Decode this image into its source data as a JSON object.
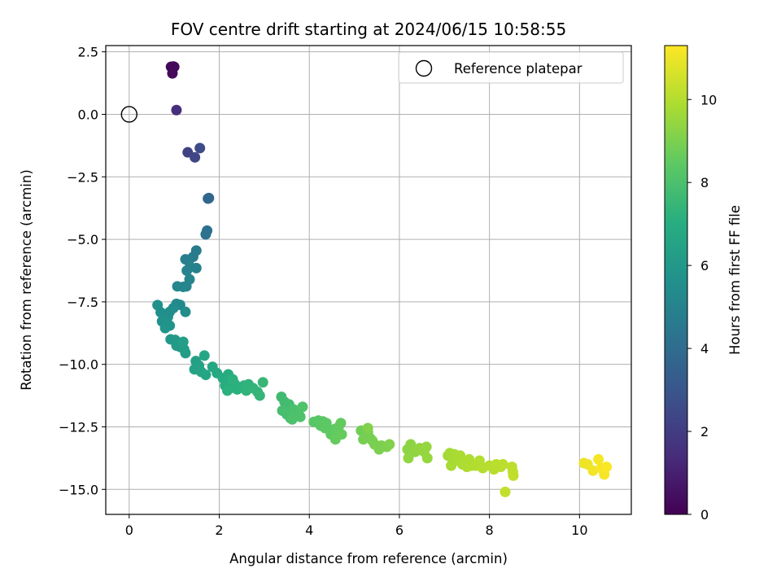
{
  "chart_data": {
    "type": "scatter",
    "title": "FOV centre drift starting at 2024/06/15 10:58:55",
    "xlabel": "Angular distance from reference (arcmin)",
    "ylabel": "Rotation from reference (arcmin)",
    "xlim": [
      -0.52,
      11.15
    ],
    "ylim": [
      -16.0,
      2.75
    ],
    "xticks": [
      "0",
      "2",
      "4",
      "6",
      "8",
      "10"
    ],
    "xtick_values": [
      0,
      2,
      4,
      6,
      8,
      10
    ],
    "yticks": [
      "2.5",
      "0.0",
      "−2.5",
      "−5.0",
      "−7.5",
      "−10.0",
      "−12.5",
      "−15.0"
    ],
    "ytick_values": [
      2.5,
      0.0,
      -2.5,
      -5.0,
      -7.5,
      -10.0,
      -12.5,
      -15.0
    ],
    "grid": true,
    "legend": {
      "placement": "top-right",
      "entries": [
        "Reference platepar"
      ]
    },
    "reference_point": {
      "x": 0.0,
      "y": 0.0
    },
    "colorbar": {
      "label": "Hours from first FF file",
      "range": [
        0,
        11.3
      ],
      "ticks": [
        "0",
        "2",
        "4",
        "6",
        "8",
        "10"
      ],
      "tick_values": [
        0,
        2,
        4,
        6,
        8,
        10
      ],
      "colormap": "viridis"
    },
    "points": [
      [
        0.98,
        1.91,
        0.15
      ],
      [
        0.93,
        1.9,
        0.2
      ],
      [
        1.0,
        1.9,
        0.25
      ],
      [
        0.96,
        1.64,
        0.3
      ],
      [
        1.05,
        0.17,
        1.5
      ],
      [
        1.3,
        -1.52,
        2.2
      ],
      [
        1.46,
        -1.72,
        2.4
      ],
      [
        1.57,
        -1.35,
        2.6
      ],
      [
        1.77,
        -3.35,
        3.7
      ],
      [
        1.75,
        -3.37,
        3.75
      ],
      [
        1.73,
        -4.65,
        4.1
      ],
      [
        1.7,
        -4.8,
        4.2
      ],
      [
        1.49,
        -5.45,
        4.6
      ],
      [
        1.42,
        -5.7,
        4.7
      ],
      [
        1.33,
        -5.82,
        4.8
      ],
      [
        1.25,
        -5.8,
        4.85
      ],
      [
        1.49,
        -6.15,
        4.9
      ],
      [
        1.35,
        -6.1,
        4.95
      ],
      [
        1.28,
        -6.25,
        5.0
      ],
      [
        1.34,
        -6.6,
        5.05
      ],
      [
        1.27,
        -6.88,
        5.1
      ],
      [
        1.2,
        -6.9,
        5.15
      ],
      [
        1.07,
        -6.88,
        5.2
      ],
      [
        1.05,
        -7.58,
        5.3
      ],
      [
        1.13,
        -7.62,
        5.35
      ],
      [
        0.98,
        -7.75,
        5.4
      ],
      [
        1.25,
        -7.9,
        5.45
      ],
      [
        0.9,
        -7.9,
        5.5
      ],
      [
        0.86,
        -8.1,
        5.55
      ],
      [
        0.7,
        -7.92,
        5.6
      ],
      [
        0.63,
        -7.63,
        5.65
      ],
      [
        0.73,
        -8.28,
        5.7
      ],
      [
        0.84,
        -8.32,
        5.75
      ],
      [
        0.9,
        -8.45,
        5.8
      ],
      [
        0.8,
        -8.55,
        5.85
      ],
      [
        0.92,
        -9.0,
        6.0
      ],
      [
        1.02,
        -9.02,
        6.05
      ],
      [
        1.05,
        -9.25,
        6.1
      ],
      [
        1.13,
        -9.3,
        6.15
      ],
      [
        1.22,
        -9.4,
        6.2
      ],
      [
        1.25,
        -9.55,
        6.25
      ],
      [
        1.2,
        -9.1,
        6.3
      ],
      [
        1.48,
        -9.87,
        6.4
      ],
      [
        1.55,
        -10.05,
        6.45
      ],
      [
        1.45,
        -10.2,
        6.5
      ],
      [
        1.6,
        -10.3,
        6.55
      ],
      [
        1.7,
        -10.42,
        6.6
      ],
      [
        1.67,
        -9.65,
        6.65
      ],
      [
        1.85,
        -10.1,
        6.7
      ],
      [
        1.95,
        -10.35,
        6.75
      ],
      [
        2.08,
        -10.55,
        6.85
      ],
      [
        2.15,
        -10.65,
        6.9
      ],
      [
        2.2,
        -10.4,
        6.95
      ],
      [
        2.13,
        -10.85,
        7.0
      ],
      [
        2.25,
        -10.95,
        7.05
      ],
      [
        2.35,
        -10.8,
        7.1
      ],
      [
        2.4,
        -11.0,
        7.12
      ],
      [
        2.18,
        -11.05,
        7.15
      ],
      [
        2.3,
        -10.6,
        7.18
      ],
      [
        2.55,
        -10.85,
        7.2
      ],
      [
        2.65,
        -10.8,
        7.25
      ],
      [
        2.6,
        -11.05,
        7.3
      ],
      [
        2.75,
        -10.95,
        7.35
      ],
      [
        2.85,
        -11.1,
        7.4
      ],
      [
        2.9,
        -11.25,
        7.45
      ],
      [
        2.97,
        -10.72,
        7.5
      ],
      [
        3.38,
        -11.3,
        7.7
      ],
      [
        3.45,
        -11.5,
        7.75
      ],
      [
        3.55,
        -11.6,
        7.8
      ],
      [
        3.4,
        -11.85,
        7.85
      ],
      [
        3.5,
        -12.0,
        7.9
      ],
      [
        3.58,
        -12.15,
        7.92
      ],
      [
        3.65,
        -11.8,
        7.95
      ],
      [
        3.7,
        -11.95,
        8.0
      ],
      [
        3.78,
        -12.05,
        8.02
      ],
      [
        3.62,
        -12.2,
        8.05
      ],
      [
        3.8,
        -12.1,
        8.08
      ],
      [
        3.85,
        -11.7,
        8.1
      ],
      [
        4.1,
        -12.3,
        8.3
      ],
      [
        4.2,
        -12.25,
        8.32
      ],
      [
        4.3,
        -12.28,
        8.35
      ],
      [
        4.25,
        -12.45,
        8.38
      ],
      [
        4.38,
        -12.35,
        8.4
      ],
      [
        4.35,
        -12.55,
        8.42
      ],
      [
        4.55,
        -12.6,
        8.45
      ],
      [
        4.48,
        -12.8,
        8.5
      ],
      [
        4.6,
        -12.75,
        8.52
      ],
      [
        4.65,
        -12.5,
        8.55
      ],
      [
        4.7,
        -12.35,
        8.58
      ],
      [
        4.72,
        -12.8,
        8.6
      ],
      [
        4.58,
        -13.0,
        8.62
      ],
      [
        5.15,
        -12.65,
        8.8
      ],
      [
        5.25,
        -12.85,
        8.82
      ],
      [
        5.3,
        -12.7,
        8.85
      ],
      [
        5.35,
        -12.95,
        8.88
      ],
      [
        5.2,
        -13.0,
        8.9
      ],
      [
        5.4,
        -13.05,
        8.92
      ],
      [
        5.45,
        -13.2,
        8.95
      ],
      [
        5.55,
        -13.4,
        9.0
      ],
      [
        5.6,
        -13.25,
        9.02
      ],
      [
        5.72,
        -13.3,
        9.05
      ],
      [
        5.78,
        -13.2,
        9.08
      ],
      [
        5.3,
        -12.55,
        9.1
      ],
      [
        6.18,
        -13.4,
        9.3
      ],
      [
        6.25,
        -13.2,
        9.32
      ],
      [
        6.35,
        -13.5,
        9.35
      ],
      [
        6.2,
        -13.75,
        9.38
      ],
      [
        6.45,
        -13.35,
        9.4
      ],
      [
        6.55,
        -13.5,
        9.42
      ],
      [
        6.6,
        -13.3,
        9.45
      ],
      [
        6.62,
        -13.75,
        9.48
      ],
      [
        7.08,
        -13.65,
        9.7
      ],
      [
        7.12,
        -13.55,
        9.72
      ],
      [
        7.18,
        -13.8,
        9.75
      ],
      [
        7.22,
        -13.6,
        9.78
      ],
      [
        7.15,
        -14.05,
        9.8
      ],
      [
        7.3,
        -13.85,
        9.82
      ],
      [
        7.35,
        -13.65,
        9.85
      ],
      [
        7.4,
        -14.0,
        9.88
      ],
      [
        7.5,
        -14.1,
        9.9
      ],
      [
        7.55,
        -13.8,
        9.92
      ],
      [
        7.6,
        -14.05,
        9.95
      ],
      [
        7.7,
        -14.05,
        9.98
      ],
      [
        7.78,
        -13.85,
        10.0
      ],
      [
        7.85,
        -14.15,
        10.02
      ],
      [
        8.0,
        -14.05,
        10.05
      ],
      [
        8.1,
        -14.2,
        10.08
      ],
      [
        8.15,
        -14.0,
        10.1
      ],
      [
        8.25,
        -14.1,
        10.12
      ],
      [
        8.3,
        -14.0,
        10.15
      ],
      [
        8.5,
        -14.1,
        10.18
      ],
      [
        8.52,
        -14.3,
        10.2
      ],
      [
        8.53,
        -14.45,
        10.22
      ],
      [
        8.35,
        -15.1,
        10.25
      ],
      [
        10.1,
        -13.95,
        11.0
      ],
      [
        10.18,
        -14.0,
        11.05
      ],
      [
        10.3,
        -14.25,
        11.1
      ],
      [
        10.42,
        -13.8,
        11.15
      ],
      [
        10.48,
        -14.15,
        11.18
      ],
      [
        10.55,
        -14.4,
        11.2
      ],
      [
        10.6,
        -14.1,
        11.25
      ]
    ]
  }
}
